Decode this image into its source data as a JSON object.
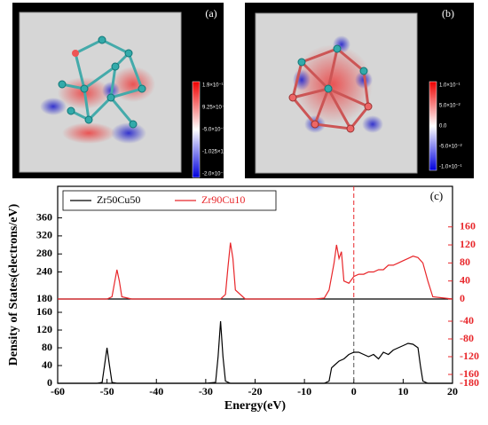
{
  "images": [
    {
      "label": "(a)",
      "colorbar": [
        "1.9×10⁻¹",
        "9.25×10⁻²",
        "-5.0×10⁻³",
        "-1.025×10⁻¹",
        "-2.0×10⁻¹"
      ]
    },
    {
      "label": "(b)",
      "colorbar": [
        "1.0×10⁻¹",
        "5.0×10⁻²",
        "0.0",
        "-5.0×10⁻²",
        "-1.0×10⁻¹"
      ]
    }
  ],
  "chart_data": [
    {
      "type": "line",
      "title": "(c)",
      "legend": "upper left",
      "xlim": [
        -60,
        20
      ],
      "ylim": [
        180,
        430
      ],
      "yticks": [
        180,
        240,
        280,
        320,
        360
      ],
      "y2lim": [
        0,
        250
      ],
      "y2ticks": [
        0,
        40,
        80,
        120,
        160
      ],
      "vline": 0,
      "series": [
        {
          "name": "Zr90Cu10",
          "color": "#e8262a",
          "axis": "y2",
          "x": [
            -60,
            -50,
            -49,
            -48.5,
            -48,
            -47.5,
            -47,
            -45,
            -27,
            -26,
            -25.5,
            -25,
            -24.5,
            -24,
            -22,
            -8,
            -6,
            -5,
            -4,
            -3.5,
            -3,
            -2.5,
            -2,
            -1,
            0,
            1,
            2,
            3,
            4,
            5,
            6,
            7,
            8,
            9,
            10,
            11,
            12,
            13,
            14,
            15,
            16,
            20
          ],
          "values": [
            0,
            0,
            5,
            35,
            65,
            40,
            5,
            0,
            0,
            10,
            70,
            125,
            90,
            20,
            0,
            0,
            2,
            20,
            80,
            120,
            90,
            105,
            40,
            35,
            50,
            55,
            55,
            60,
            60,
            65,
            65,
            75,
            75,
            80,
            85,
            90,
            95,
            92,
            80,
            40,
            5,
            0
          ]
        }
      ]
    },
    {
      "type": "line",
      "xlabel": "Energy(eV)",
      "ylabel": "Density of States(electrons/eV)",
      "xlim": [
        -60,
        20
      ],
      "xticks": [
        -60,
        -50,
        -40,
        -30,
        -20,
        -10,
        0,
        10,
        20
      ],
      "ylim": [
        0,
        190
      ],
      "yticks": [
        0,
        40,
        80,
        120,
        160
      ],
      "y2lim": [
        -180,
        10
      ],
      "y2ticks": [
        -180,
        -160,
        -120,
        -80,
        -40
      ],
      "vline": 0,
      "series": [
        {
          "name": "Zr50Cu50",
          "color": "#000000",
          "x": [
            -60,
            -52,
            -51,
            -50.5,
            -50,
            -49.5,
            -49,
            -48,
            -30,
            -28,
            -27.5,
            -27,
            -26.5,
            -26,
            -25,
            -10,
            -6,
            -5,
            -4.5,
            -4,
            -3,
            -2,
            -1,
            0,
            1,
            2,
            3,
            4,
            5,
            6,
            7,
            8,
            9,
            10,
            11,
            12,
            13,
            13.5,
            14,
            15,
            20
          ],
          "values": [
            0,
            0,
            2,
            40,
            80,
            40,
            2,
            0,
            0,
            2,
            60,
            140,
            60,
            5,
            0,
            0,
            0,
            5,
            35,
            40,
            50,
            55,
            65,
            70,
            70,
            65,
            60,
            65,
            55,
            70,
            65,
            75,
            80,
            85,
            90,
            88,
            80,
            40,
            5,
            0,
            0
          ]
        }
      ]
    }
  ]
}
